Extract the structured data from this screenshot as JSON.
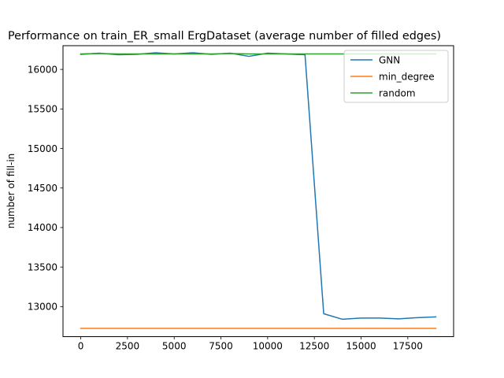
{
  "chart_data": {
    "type": "line",
    "title": "Performance on train_ER_small ErgDataset (average number of filled edges)",
    "xlabel": "",
    "ylabel": "number of fill-in",
    "xlim": [
      -950,
      19950
    ],
    "ylim": [
      12620,
      16300
    ],
    "xticks": [
      0,
      2500,
      5000,
      7500,
      10000,
      12500,
      15000,
      17500
    ],
    "yticks": [
      13000,
      13500,
      14000,
      14500,
      15000,
      15500,
      16000
    ],
    "legend_position": "top-right",
    "series": [
      {
        "name": "GNN",
        "color": "#1f77b4",
        "x": [
          0,
          1000,
          2000,
          3000,
          4000,
          5000,
          6000,
          7000,
          8000,
          9000,
          10000,
          11000,
          12000,
          13000,
          14000,
          15000,
          16000,
          17000,
          18000,
          19000
        ],
        "y": [
          16190,
          16205,
          16185,
          16190,
          16210,
          16195,
          16210,
          16190,
          16205,
          16165,
          16205,
          16195,
          16185,
          12910,
          12840,
          12855,
          12855,
          12845,
          12860,
          12870
        ]
      },
      {
        "name": "min_degree",
        "color": "#ff7f0e",
        "x": [
          0,
          19000
        ],
        "y": [
          12725,
          12725
        ]
      },
      {
        "name": "random",
        "color": "#2ca02c",
        "x": [
          0,
          1000,
          2000,
          3000,
          4000,
          5000,
          6000,
          7000,
          8000,
          9000,
          10000,
          11000,
          12000,
          13000,
          14000,
          15000,
          16000,
          17000,
          18000,
          19000
        ],
        "y": [
          16195,
          16200,
          16195,
          16195,
          16195,
          16195,
          16195,
          16195,
          16200,
          16195,
          16195,
          16195,
          16195,
          16195,
          16195,
          16195,
          16195,
          16195,
          16195,
          16195
        ]
      }
    ]
  }
}
